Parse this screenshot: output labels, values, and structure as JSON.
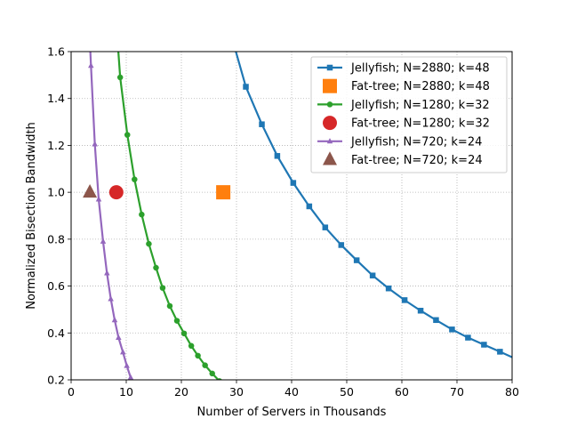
{
  "chart_data": {
    "type": "line",
    "title": "",
    "xlabel": "Number of Servers in Thousands",
    "ylabel": "Normalized Bisection Bandwidth",
    "xlim": [
      0,
      80
    ],
    "ylim": [
      0.2,
      1.6
    ],
    "xticks": [
      0,
      10,
      20,
      30,
      40,
      50,
      60,
      70,
      80
    ],
    "yticks": [
      0.2,
      0.4,
      0.6,
      0.8,
      1.0,
      1.2,
      1.4,
      1.6
    ],
    "xtick_labels": [
      "0",
      "10",
      "20",
      "30",
      "40",
      "50",
      "60",
      "70",
      "80"
    ],
    "ytick_labels": [
      "0.2",
      "0.4",
      "0.6",
      "0.8",
      "1.0",
      "1.2",
      "1.4",
      "1.6"
    ],
    "grid": true,
    "legend_position": "top-right",
    "series": [
      {
        "name": "Jellyfish; N=2880; k=48",
        "kind": "line",
        "color": "#1f77b4",
        "marker": "square",
        "x": [
          28.8,
          31.7,
          34.6,
          37.4,
          40.3,
          43.2,
          46.1,
          49.0,
          51.8,
          54.7,
          57.6,
          60.5,
          63.4,
          66.2,
          69.1,
          72.0,
          74.9,
          77.8,
          80.6
        ],
        "y": [
          1.69,
          1.45,
          1.29,
          1.155,
          1.04,
          0.94,
          0.85,
          0.775,
          0.71,
          0.645,
          0.59,
          0.54,
          0.495,
          0.455,
          0.415,
          0.38,
          0.35,
          0.32,
          0.29
        ]
      },
      {
        "name": "Fat-tree; N=2880; k=48",
        "kind": "point",
        "color": "#ff7f0e",
        "marker": "square",
        "x": [
          27.6
        ],
        "y": [
          1.0
        ]
      },
      {
        "name": "Jellyfish; N=1280; k=32",
        "kind": "line",
        "color": "#2ca02c",
        "marker": "circle",
        "x": [
          8.2,
          8.9,
          10.2,
          11.5,
          12.8,
          14.1,
          15.4,
          16.6,
          17.9,
          19.2,
          20.5,
          21.8,
          23.0,
          24.3,
          25.6,
          26.9
        ],
        "y": [
          1.72,
          1.49,
          1.245,
          1.055,
          0.905,
          0.78,
          0.678,
          0.592,
          0.515,
          0.452,
          0.398,
          0.345,
          0.303,
          0.262,
          0.227,
          0.195
        ]
      },
      {
        "name": "Fat-tree; N=1280; k=32",
        "kind": "point",
        "color": "#d62728",
        "marker": "circle",
        "x": [
          8.2
        ],
        "y": [
          1.0
        ]
      },
      {
        "name": "Jellyfish; N=720; k=24",
        "kind": "line",
        "color": "#9467bd",
        "marker": "triangle",
        "x": [
          3.2,
          3.6,
          4.3,
          5.0,
          5.8,
          6.5,
          7.2,
          7.9,
          8.6,
          9.4,
          10.1,
          10.8
        ],
        "y": [
          1.75,
          1.54,
          1.205,
          0.97,
          0.79,
          0.655,
          0.545,
          0.455,
          0.38,
          0.318,
          0.26,
          0.21
        ]
      },
      {
        "name": "Fat-tree; N=720; k=24",
        "kind": "point",
        "color": "#8c564b",
        "marker": "triangle",
        "x": [
          3.4
        ],
        "y": [
          1.0
        ]
      }
    ]
  }
}
